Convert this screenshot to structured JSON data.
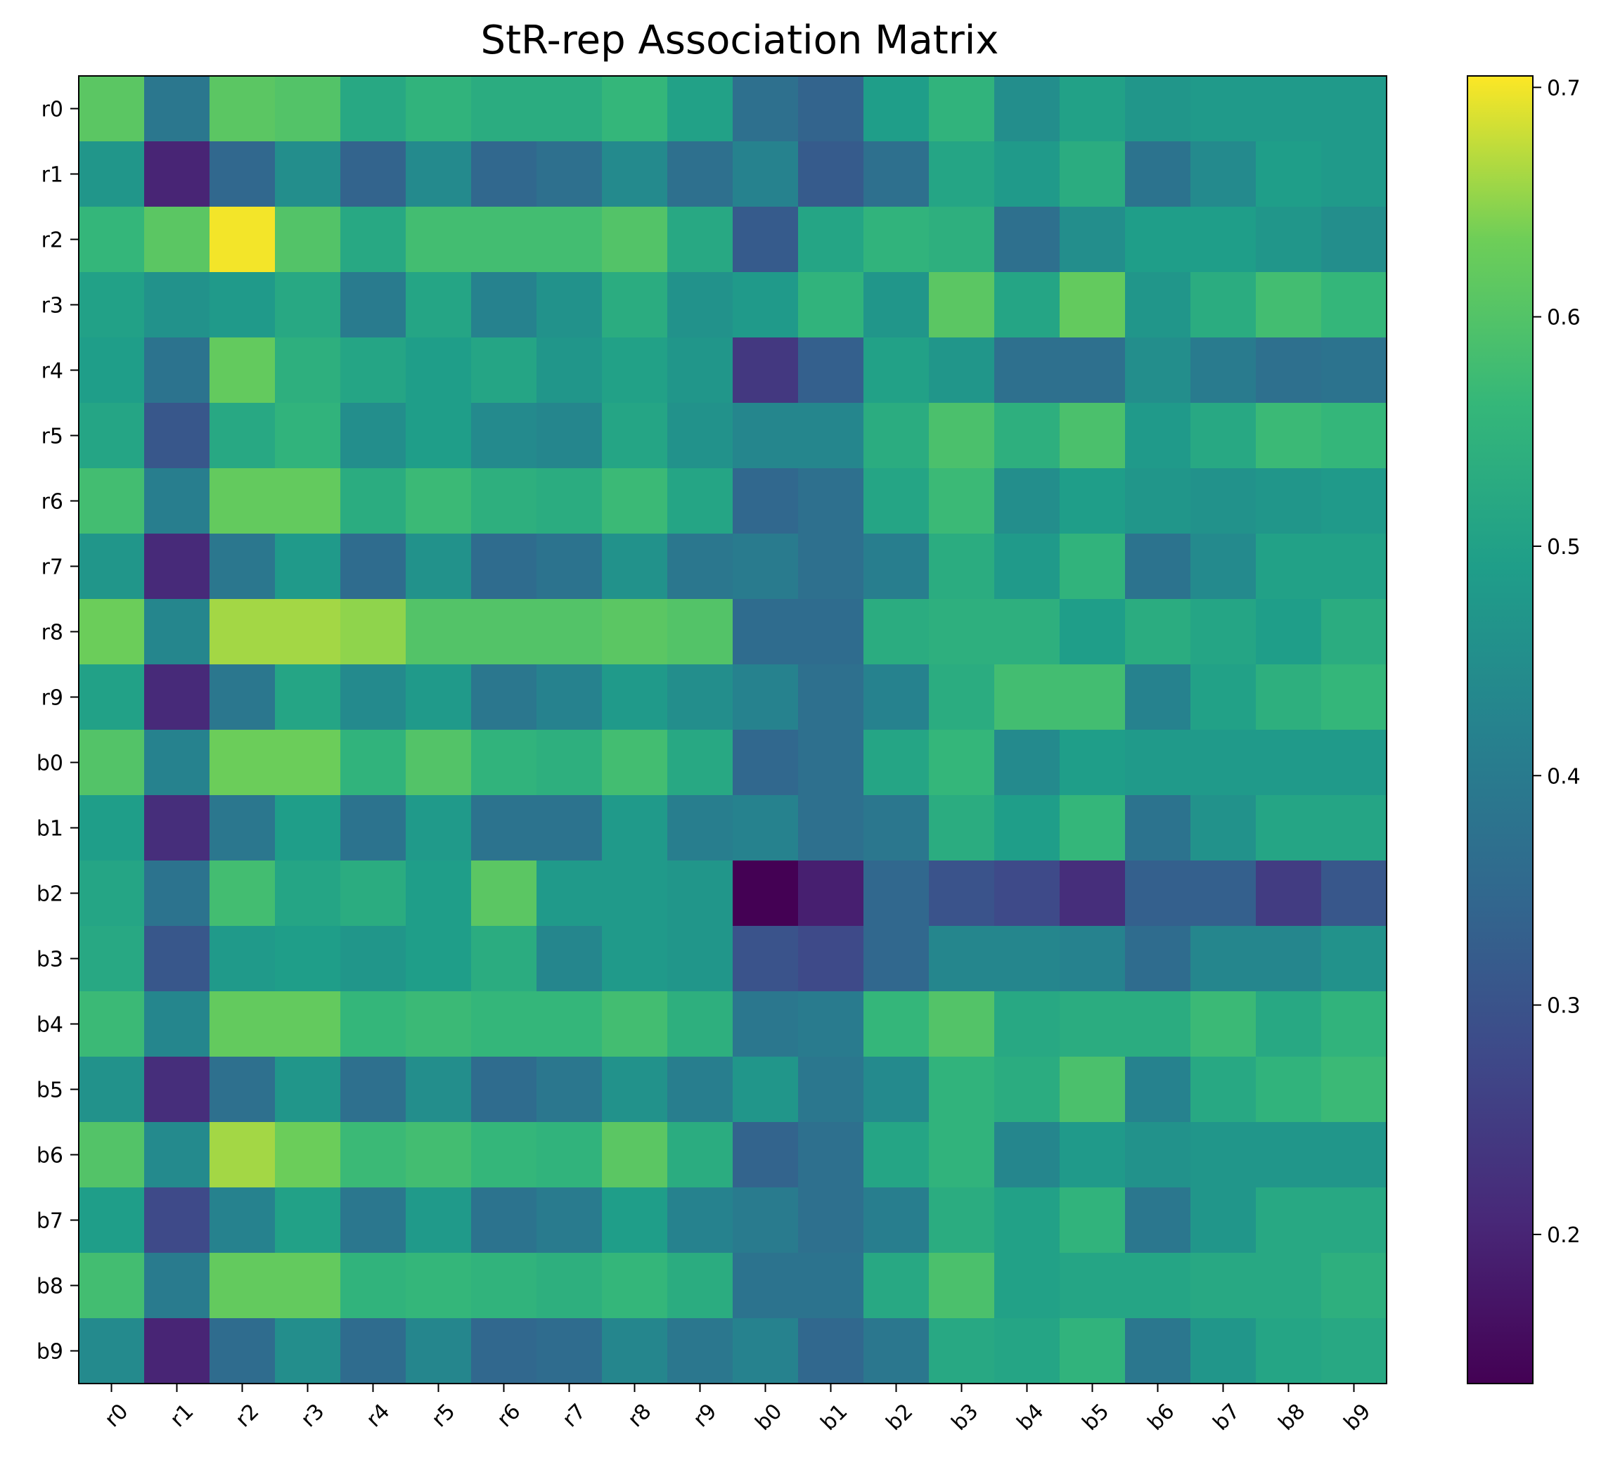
{
  "chart_data": {
    "type": "heatmap",
    "title": "StR-rep Association Matrix",
    "xlabel": "",
    "ylabel": "",
    "x_categories": [
      "r0",
      "r1",
      "r2",
      "r3",
      "r4",
      "r5",
      "r6",
      "r7",
      "r8",
      "r9",
      "b0",
      "b1",
      "b2",
      "b3",
      "b4",
      "b5",
      "b6",
      "b7",
      "b8",
      "b9"
    ],
    "y_categories": [
      "r0",
      "r1",
      "r2",
      "r3",
      "r4",
      "r5",
      "r6",
      "r7",
      "r8",
      "r9",
      "b0",
      "b1",
      "b2",
      "b3",
      "b4",
      "b5",
      "b6",
      "b7",
      "b8",
      "b9"
    ],
    "colormap": "viridis",
    "vmin": 0.135,
    "vmax": 0.705,
    "colorbar_ticks": [
      0.2,
      0.3,
      0.4,
      0.5,
      0.6,
      0.7
    ],
    "colorbar_tick_labels": [
      "0.2",
      "0.3",
      "0.4",
      "0.5",
      "0.6",
      "0.7"
    ],
    "values": [
      [
        0.61,
        0.39,
        0.61,
        0.6,
        0.52,
        0.55,
        0.53,
        0.53,
        0.56,
        0.5,
        0.37,
        0.34,
        0.49,
        0.55,
        0.45,
        0.5,
        0.47,
        0.48,
        0.48,
        0.48
      ],
      [
        0.47,
        0.2,
        0.35,
        0.45,
        0.34,
        0.44,
        0.35,
        0.37,
        0.44,
        0.37,
        0.42,
        0.32,
        0.37,
        0.51,
        0.48,
        0.53,
        0.38,
        0.44,
        0.49,
        0.48
      ],
      [
        0.56,
        0.61,
        0.7,
        0.6,
        0.52,
        0.58,
        0.58,
        0.58,
        0.6,
        0.52,
        0.32,
        0.51,
        0.55,
        0.54,
        0.37,
        0.45,
        0.49,
        0.49,
        0.47,
        0.45
      ],
      [
        0.5,
        0.46,
        0.48,
        0.52,
        0.4,
        0.51,
        0.42,
        0.46,
        0.53,
        0.46,
        0.48,
        0.55,
        0.47,
        0.61,
        0.51,
        0.62,
        0.47,
        0.53,
        0.58,
        0.56
      ],
      [
        0.49,
        0.38,
        0.62,
        0.54,
        0.51,
        0.49,
        0.51,
        0.47,
        0.5,
        0.47,
        0.24,
        0.33,
        0.5,
        0.47,
        0.37,
        0.37,
        0.45,
        0.4,
        0.37,
        0.38
      ],
      [
        0.51,
        0.31,
        0.52,
        0.55,
        0.45,
        0.49,
        0.44,
        0.43,
        0.51,
        0.46,
        0.43,
        0.43,
        0.53,
        0.59,
        0.54,
        0.59,
        0.48,
        0.52,
        0.57,
        0.56
      ],
      [
        0.58,
        0.41,
        0.62,
        0.62,
        0.53,
        0.57,
        0.54,
        0.53,
        0.57,
        0.51,
        0.35,
        0.37,
        0.51,
        0.57,
        0.45,
        0.49,
        0.47,
        0.46,
        0.47,
        0.48
      ],
      [
        0.47,
        0.21,
        0.39,
        0.48,
        0.36,
        0.46,
        0.36,
        0.38,
        0.46,
        0.39,
        0.4,
        0.37,
        0.41,
        0.53,
        0.48,
        0.55,
        0.38,
        0.44,
        0.5,
        0.5
      ],
      [
        0.63,
        0.43,
        0.66,
        0.66,
        0.65,
        0.6,
        0.6,
        0.6,
        0.61,
        0.6,
        0.36,
        0.36,
        0.53,
        0.54,
        0.54,
        0.49,
        0.53,
        0.51,
        0.49,
        0.53
      ],
      [
        0.5,
        0.21,
        0.39,
        0.51,
        0.44,
        0.48,
        0.39,
        0.42,
        0.48,
        0.45,
        0.42,
        0.37,
        0.42,
        0.53,
        0.58,
        0.58,
        0.42,
        0.5,
        0.54,
        0.56
      ],
      [
        0.6,
        0.42,
        0.63,
        0.63,
        0.55,
        0.6,
        0.55,
        0.54,
        0.58,
        0.52,
        0.35,
        0.37,
        0.51,
        0.56,
        0.44,
        0.49,
        0.48,
        0.48,
        0.48,
        0.48
      ],
      [
        0.49,
        0.22,
        0.39,
        0.49,
        0.38,
        0.48,
        0.38,
        0.38,
        0.48,
        0.41,
        0.42,
        0.37,
        0.39,
        0.53,
        0.49,
        0.56,
        0.38,
        0.46,
        0.51,
        0.51
      ],
      [
        0.51,
        0.38,
        0.58,
        0.51,
        0.53,
        0.49,
        0.61,
        0.48,
        0.48,
        0.47,
        0.13,
        0.19,
        0.35,
        0.3,
        0.28,
        0.22,
        0.33,
        0.33,
        0.25,
        0.31
      ],
      [
        0.52,
        0.31,
        0.48,
        0.49,
        0.47,
        0.49,
        0.53,
        0.43,
        0.48,
        0.47,
        0.3,
        0.28,
        0.35,
        0.43,
        0.43,
        0.42,
        0.36,
        0.43,
        0.43,
        0.46
      ],
      [
        0.57,
        0.43,
        0.62,
        0.62,
        0.56,
        0.57,
        0.56,
        0.56,
        0.58,
        0.54,
        0.39,
        0.4,
        0.56,
        0.6,
        0.52,
        0.53,
        0.53,
        0.57,
        0.52,
        0.55
      ],
      [
        0.46,
        0.22,
        0.37,
        0.47,
        0.37,
        0.45,
        0.36,
        0.39,
        0.46,
        0.41,
        0.47,
        0.39,
        0.44,
        0.55,
        0.53,
        0.59,
        0.42,
        0.52,
        0.55,
        0.57
      ],
      [
        0.6,
        0.44,
        0.66,
        0.63,
        0.57,
        0.58,
        0.56,
        0.55,
        0.61,
        0.53,
        0.34,
        0.37,
        0.51,
        0.55,
        0.43,
        0.48,
        0.46,
        0.47,
        0.47,
        0.47
      ],
      [
        0.49,
        0.28,
        0.42,
        0.5,
        0.39,
        0.48,
        0.38,
        0.4,
        0.49,
        0.42,
        0.4,
        0.37,
        0.41,
        0.53,
        0.5,
        0.55,
        0.39,
        0.47,
        0.52,
        0.52
      ],
      [
        0.58,
        0.4,
        0.62,
        0.62,
        0.55,
        0.56,
        0.55,
        0.54,
        0.56,
        0.53,
        0.38,
        0.38,
        0.52,
        0.59,
        0.5,
        0.51,
        0.51,
        0.52,
        0.52,
        0.54
      ],
      [
        0.44,
        0.2,
        0.36,
        0.45,
        0.36,
        0.43,
        0.35,
        0.36,
        0.43,
        0.39,
        0.42,
        0.35,
        0.39,
        0.52,
        0.51,
        0.55,
        0.39,
        0.47,
        0.51,
        0.52
      ]
    ]
  }
}
